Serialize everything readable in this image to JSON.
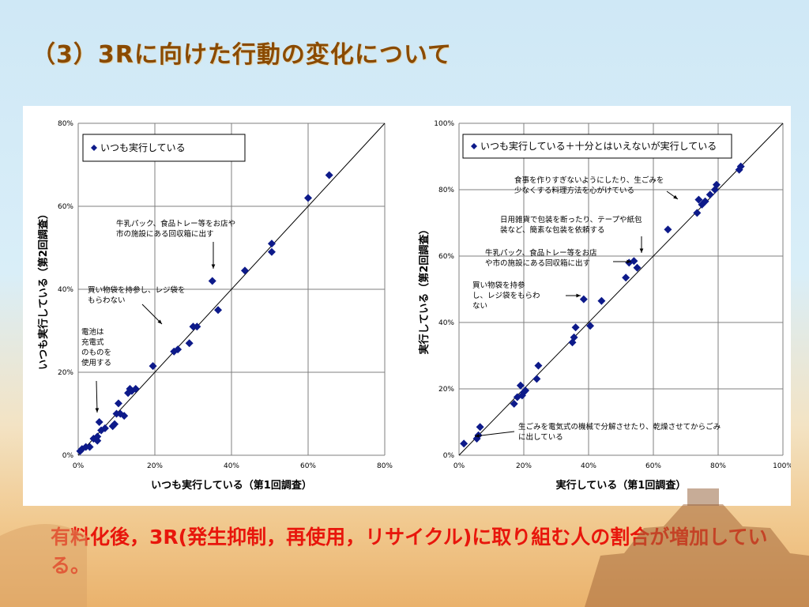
{
  "title": "（3）3Rに向けた行動の変化について",
  "conclusion": "有料化後，3R(発生抑制，再使用，リサイクル)に取り組む人の割合が増加している。",
  "colors": {
    "marker": "#0d1a8a",
    "title": "#8a4a00",
    "conclusion": "#e8160c"
  },
  "chart_data": [
    {
      "type": "scatter",
      "xlabel": "いつも実行している（第1回調査）",
      "ylabel": "いつも実行している（第2回調査）",
      "xlim": [
        0,
        80
      ],
      "ylim": [
        0,
        80
      ],
      "xticks": [
        "0%",
        "20%",
        "40%",
        "60%",
        "80%"
      ],
      "yticks": [
        "0%",
        "20%",
        "40%",
        "60%",
        "80%"
      ],
      "reference_line": "y = x",
      "grid": true,
      "legend": "top-left",
      "series": [
        {
          "name": "いつも実行している",
          "points": [
            [
              0.5,
              1
            ],
            [
              1,
              1.5
            ],
            [
              2,
              2
            ],
            [
              3,
              2
            ],
            [
              4,
              4
            ],
            [
              5,
              3.5
            ],
            [
              5,
              4.5
            ],
            [
              5.5,
              8
            ],
            [
              6,
              6
            ],
            [
              7,
              6.5
            ],
            [
              9,
              7
            ],
            [
              9.5,
              7.5
            ],
            [
              10,
              10
            ],
            [
              10.5,
              12.5
            ],
            [
              11,
              10
            ],
            [
              12,
              9.5
            ],
            [
              13,
              15
            ],
            [
              13.5,
              16
            ],
            [
              14,
              15.5
            ],
            [
              15,
              16
            ],
            [
              19.5,
              21.5
            ],
            [
              25,
              25
            ],
            [
              26,
              25.5
            ],
            [
              29,
              27
            ],
            [
              30,
              31
            ],
            [
              31,
              31
            ],
            [
              35,
              42
            ],
            [
              36.5,
              35
            ],
            [
              43.5,
              44.5
            ],
            [
              50.5,
              49
            ],
            [
              50.5,
              51
            ],
            [
              60,
              62
            ],
            [
              65.5,
              67.5
            ]
          ]
        }
      ],
      "annotations": [
        {
          "lines": [
            "牛乳パック、食品トレー等をお店や",
            "市の施設にある回収箱に出す"
          ]
        },
        {
          "lines": [
            "買い物袋を持参し、レジ袋を",
            "もらわない"
          ]
        },
        {
          "lines": [
            "電池は",
            "充電式",
            "のものを",
            "使用する"
          ]
        }
      ]
    },
    {
      "type": "scatter",
      "xlabel": "実行している（第1回調査）",
      "ylabel": "実行している（第2回調査）",
      "xlim": [
        0,
        100
      ],
      "ylim": [
        0,
        100
      ],
      "xticks": [
        "0%",
        "20%",
        "40%",
        "60%",
        "80%",
        "100%"
      ],
      "yticks": [
        "0%",
        "20%",
        "40%",
        "60%",
        "80%",
        "100%"
      ],
      "reference_line": "y = x",
      "grid": true,
      "legend": "top-left",
      "series": [
        {
          "name": "いつも実行している＋十分とはいえないが実行している",
          "points": [
            [
              1.5,
              3.5
            ],
            [
              5.5,
              5
            ],
            [
              6,
              6
            ],
            [
              6.5,
              8.5
            ],
            [
              17,
              15.5
            ],
            [
              18,
              17.5
            ],
            [
              19,
              21
            ],
            [
              19.5,
              18
            ],
            [
              20,
              19
            ],
            [
              20.5,
              19.5
            ],
            [
              24,
              23
            ],
            [
              24.5,
              27
            ],
            [
              35,
              34
            ],
            [
              35.5,
              35.5
            ],
            [
              36,
              38.5
            ],
            [
              38.5,
              47
            ],
            [
              40.5,
              39
            ],
            [
              44,
              46.5
            ],
            [
              51.5,
              53.5
            ],
            [
              52.5,
              58
            ],
            [
              54,
              58.5
            ],
            [
              55,
              56.5
            ],
            [
              64.5,
              68
            ],
            [
              73.5,
              73
            ],
            [
              74,
              77
            ],
            [
              75,
              75.5
            ],
            [
              76,
              76.5
            ],
            [
              77.5,
              78.5
            ],
            [
              79,
              80
            ],
            [
              79.5,
              81.5
            ],
            [
              86.5,
              86
            ],
            [
              87,
              87
            ]
          ]
        }
      ],
      "annotations": [
        {
          "lines": [
            "食事を作りすぎないようにしたり、生ごみを",
            "少なくする料理方法を心がけている"
          ]
        },
        {
          "lines": [
            "日用雑貨で包装を断ったり、テープや紙包",
            "装など、簡素な包装を依頼する"
          ]
        },
        {
          "lines": [
            "牛乳パック、食品トレー等をお店",
            "や市の施設にある回収箱に出す"
          ]
        },
        {
          "lines": [
            "買い物袋を持参",
            "し、レジ袋をもらわ",
            "ない"
          ]
        },
        {
          "lines": [
            "生ごみを電気式の機械で分解させたり、乾燥させてからごみ",
            "に出している"
          ]
        }
      ]
    }
  ]
}
